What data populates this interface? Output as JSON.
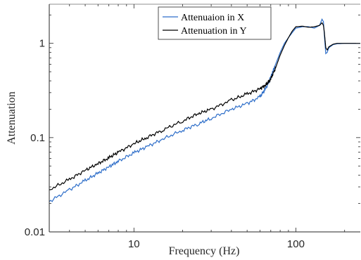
{
  "chart_data": {
    "type": "line",
    "title": "",
    "xlabel": "Frequency (Hz)",
    "ylabel": "Attenuation",
    "x_scale": "log",
    "y_scale": "log",
    "xlim": [
      3,
      250
    ],
    "ylim": [
      0.01,
      2.6
    ],
    "x_ticks": [
      {
        "value": 10,
        "label": "10"
      },
      {
        "value": 100,
        "label": "100"
      }
    ],
    "y_ticks": [
      {
        "value": 0.01,
        "label": "0.01"
      },
      {
        "value": 0.1,
        "label": "0.1"
      },
      {
        "value": 1,
        "label": "1"
      }
    ],
    "grid": false,
    "legend_position": "top-center",
    "series": [
      {
        "name": "Attenuaion in X",
        "color": "#2e6ec9",
        "x": [
          3,
          4,
          5,
          6,
          7,
          8,
          10,
          12,
          15,
          20,
          25,
          30,
          40,
          50,
          60,
          65,
          70,
          75,
          80,
          85,
          90,
          95,
          100,
          110,
          120,
          130,
          140,
          145,
          148,
          150,
          153,
          156,
          160,
          170,
          180,
          200,
          250
        ],
        "y": [
          0.021,
          0.028,
          0.035,
          0.042,
          0.049,
          0.056,
          0.069,
          0.08,
          0.096,
          0.12,
          0.14,
          0.16,
          0.2,
          0.23,
          0.27,
          0.33,
          0.44,
          0.6,
          0.8,
          1.0,
          1.15,
          1.3,
          1.45,
          1.5,
          1.5,
          1.45,
          1.55,
          1.8,
          1.7,
          1.2,
          0.78,
          0.8,
          0.9,
          0.97,
          0.99,
          1.0,
          1.0
        ]
      },
      {
        "name": "Attenuation in Y",
        "color": "#000000",
        "x": [
          3,
          4,
          5,
          6,
          7,
          8,
          10,
          12,
          15,
          20,
          25,
          30,
          40,
          50,
          60,
          65,
          70,
          75,
          80,
          85,
          90,
          95,
          100,
          110,
          120,
          130,
          140,
          145,
          148,
          150,
          153,
          156,
          160,
          170,
          180,
          200,
          250
        ],
        "y": [
          0.028,
          0.036,
          0.045,
          0.053,
          0.061,
          0.07,
          0.086,
          0.1,
          0.12,
          0.15,
          0.18,
          0.2,
          0.25,
          0.29,
          0.33,
          0.36,
          0.42,
          0.55,
          0.75,
          0.95,
          1.15,
          1.35,
          1.5,
          1.52,
          1.48,
          1.5,
          1.55,
          1.65,
          1.55,
          1.3,
          0.9,
          0.85,
          0.92,
          0.98,
          1.0,
          1.0,
          1.0
        ]
      }
    ]
  }
}
